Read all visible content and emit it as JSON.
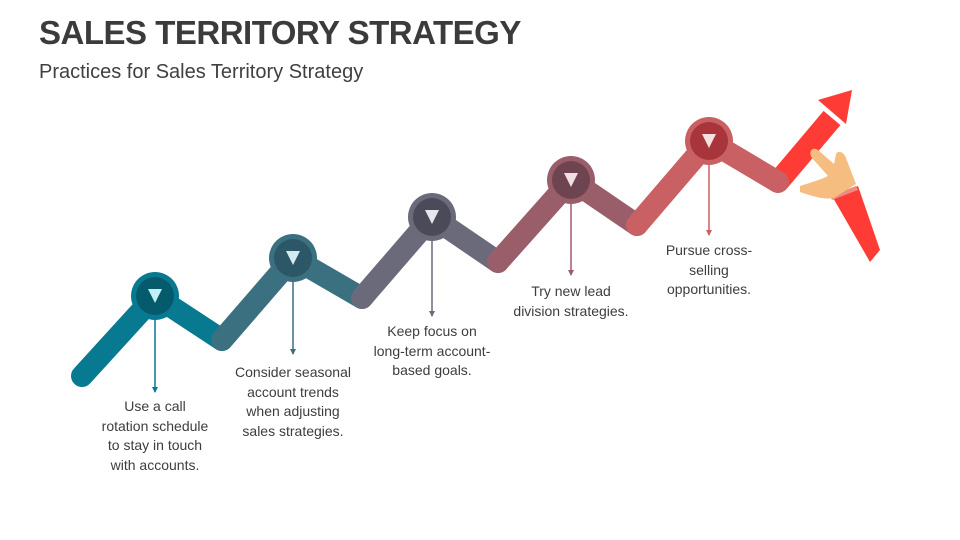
{
  "header": {
    "title": "SALES TERRITORY STRATEGY",
    "subtitle": "Practices for Sales Territory Strategy"
  },
  "steps": [
    {
      "lines": [
        "Use a call",
        "rotation schedule",
        "to stay in touch",
        "with accounts."
      ],
      "color": "#077990",
      "node": "#055a6b",
      "triangle": "#c4eef5",
      "icon": "triangle-down-icon"
    },
    {
      "lines": [
        "Consider seasonal",
        "account trends",
        "when adjusting",
        "sales strategies."
      ],
      "color": "#3a7080",
      "node": "#2b5766",
      "triangle": "#d4ecf0",
      "icon": "triangle-down-icon"
    },
    {
      "lines": [
        "Keep focus on",
        "long-term account-",
        "based goals."
      ],
      "color": "#6a6a7a",
      "node": "#4a4a58",
      "triangle": "#e6e6ee",
      "icon": "triangle-down-icon"
    },
    {
      "lines": [
        "Try new lead",
        "division strategies."
      ],
      "color": "#9a5e6a",
      "node": "#6e4450",
      "triangle": "#f0e0e4",
      "icon": "triangle-down-icon"
    },
    {
      "lines": [
        "Pursue cross-",
        "selling",
        "opportunities."
      ],
      "color": "#c96064",
      "node": "#a8353b",
      "triangle": "#f6e0e0",
      "icon": "triangle-down-icon"
    }
  ],
  "arrow_color": "#ff3b35",
  "hand_icon": "pointing-hand-icon"
}
